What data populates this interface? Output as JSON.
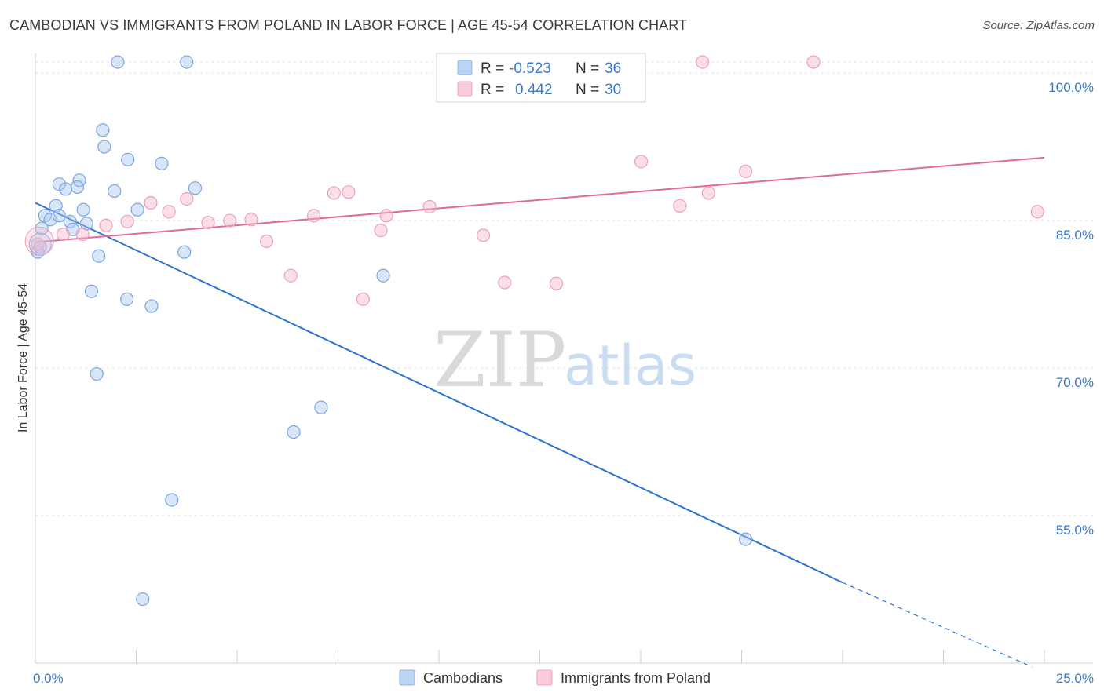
{
  "header": {
    "title": "CAMBODIAN VS IMMIGRANTS FROM POLAND IN LABOR FORCE | AGE 45-54 CORRELATION CHART",
    "source": "Source: ZipAtlas.com"
  },
  "watermark": {
    "zip": "ZIP",
    "atlas": "atlas"
  },
  "legend": {
    "rows": [
      {
        "r_label": "R =",
        "r_value": "-0.523",
        "n_label": "N =",
        "n_value": "36",
        "color": "#a9c8f0"
      },
      {
        "r_label": "R =",
        "r_value": "0.442",
        "n_label": "N =",
        "n_value": "30",
        "color": "#f6b9cc"
      }
    ]
  },
  "bottom_legend": {
    "items": [
      {
        "label": "Cambodians",
        "color": "#a9c8f0"
      },
      {
        "label": "Immigrants from Poland",
        "color": "#f6b9cc"
      }
    ]
  },
  "chart_data": {
    "type": "scatter",
    "title": "CAMBODIAN VS IMMIGRANTS FROM POLAND IN LABOR FORCE | AGE 45-54 CORRELATION CHART",
    "xlabel": "",
    "ylabel": "In Labor Force | Age 45-54",
    "xlim": [
      0,
      25
    ],
    "ylim": [
      40,
      102
    ],
    "x_tick_labels": [
      "0.0%",
      "25.0%"
    ],
    "y_ticks": [
      {
        "value": 100,
        "label": "100.0%"
      },
      {
        "value": 85,
        "label": "85.0%"
      },
      {
        "value": 70,
        "label": "70.0%"
      },
      {
        "value": 55,
        "label": "55.0%"
      }
    ],
    "grid": true,
    "legend_position": "top-center",
    "series": [
      {
        "name": "Cambodians",
        "color": "#a9c8f0",
        "line_color": "#2f74d0",
        "trend": {
          "x0": 0,
          "y0": 86.8,
          "x1": 20,
          "y1": 48.2,
          "dash_to_x": 24.7,
          "dash_to_y": 39.6
        },
        "points": [
          [
            2.04,
            101.5
          ],
          [
            3.75,
            101.5
          ],
          [
            1.67,
            94.2
          ],
          [
            1.71,
            92.5
          ],
          [
            2.29,
            91.2
          ],
          [
            3.13,
            90.8
          ],
          [
            0.59,
            88.7
          ],
          [
            1.09,
            89.1
          ],
          [
            0.75,
            88.2
          ],
          [
            1.04,
            88.4
          ],
          [
            1.96,
            88.0
          ],
          [
            3.96,
            88.3
          ],
          [
            0.51,
            86.5
          ],
          [
            1.19,
            86.1
          ],
          [
            2.53,
            86.1
          ],
          [
            0.24,
            85.5
          ],
          [
            0.37,
            85.1
          ],
          [
            0.59,
            85.5
          ],
          [
            0.86,
            84.9
          ],
          [
            1.27,
            84.7
          ],
          [
            0.16,
            84.2
          ],
          [
            0.93,
            84.1
          ],
          [
            0.06,
            81.8
          ],
          [
            1.57,
            81.4
          ],
          [
            3.69,
            81.8
          ],
          [
            1.39,
            77.8
          ],
          [
            2.27,
            77.0
          ],
          [
            2.88,
            76.3
          ],
          [
            8.62,
            79.4
          ],
          [
            1.52,
            69.4
          ],
          [
            7.08,
            66.0
          ],
          [
            6.4,
            63.5
          ],
          [
            3.38,
            56.6
          ],
          [
            17.6,
            52.6
          ],
          [
            2.66,
            46.5
          ],
          [
            0.12,
            82.3
          ]
        ]
      },
      {
        "name": "Immigrants from Poland",
        "color": "#f6b9cc",
        "line_color": "#e06b94",
        "trend": {
          "x0": 0,
          "y0": 82.8,
          "x1": 25,
          "y1": 91.4
        },
        "points": [
          [
            0.06,
            82.6
          ],
          [
            0.69,
            83.6
          ],
          [
            1.17,
            83.6
          ],
          [
            1.75,
            84.5
          ],
          [
            2.28,
            84.9
          ],
          [
            2.86,
            86.8
          ],
          [
            3.31,
            85.9
          ],
          [
            3.75,
            87.2
          ],
          [
            4.28,
            84.8
          ],
          [
            4.82,
            85.0
          ],
          [
            5.35,
            85.1
          ],
          [
            5.73,
            82.9
          ],
          [
            6.33,
            79.4
          ],
          [
            6.9,
            85.5
          ],
          [
            7.4,
            87.8
          ],
          [
            7.76,
            87.9
          ],
          [
            8.12,
            77.0
          ],
          [
            8.56,
            84.0
          ],
          [
            8.7,
            85.5
          ],
          [
            9.77,
            86.4
          ],
          [
            11.1,
            83.5
          ],
          [
            11.63,
            78.7
          ],
          [
            12.91,
            78.6
          ],
          [
            15.01,
            91.0
          ],
          [
            15.97,
            86.5
          ],
          [
            16.68,
            87.8
          ],
          [
            17.6,
            90.0
          ],
          [
            16.53,
            101.5
          ],
          [
            19.28,
            101.5
          ],
          [
            24.83,
            85.9
          ]
        ]
      }
    ]
  }
}
